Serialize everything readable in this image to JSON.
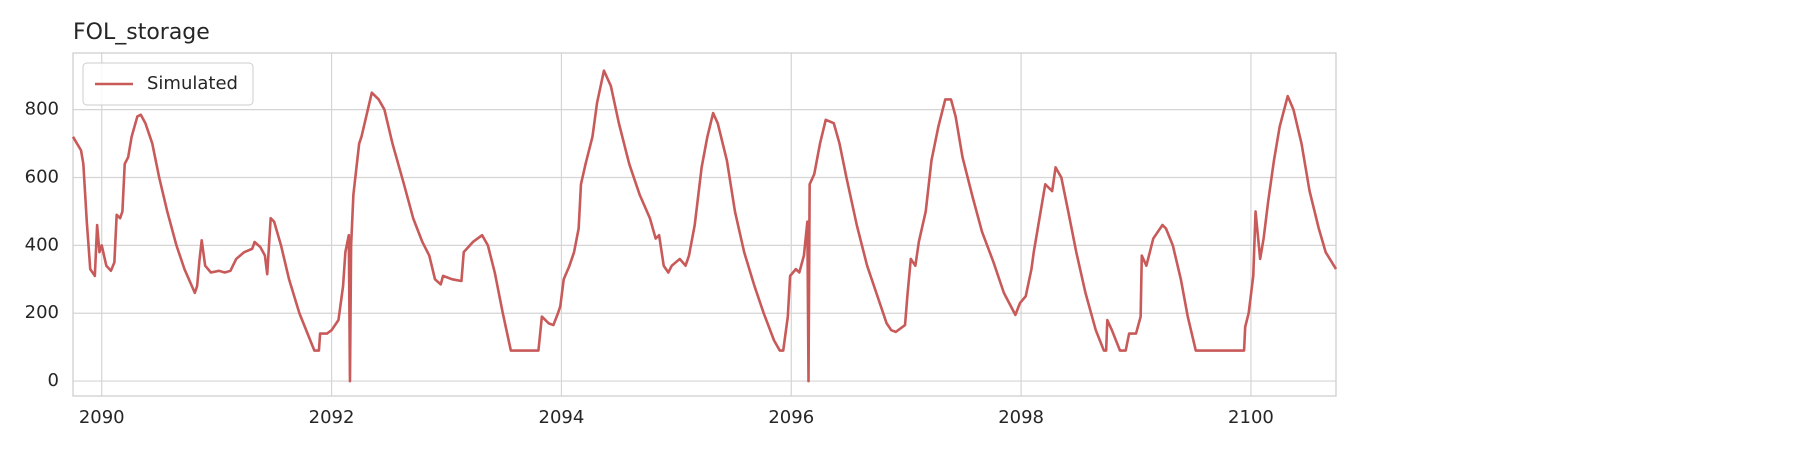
{
  "chart_data": {
    "type": "line",
    "title": "FOL_storage",
    "x": [
      2089.75,
      2089.82,
      2089.84,
      2089.87,
      2089.9,
      2089.94,
      2089.96,
      2089.98,
      2090.0,
      2090.04,
      2090.08,
      2090.11,
      2090.13,
      2090.16,
      2090.18,
      2090.2,
      2090.23,
      2090.26,
      2090.31,
      2090.34,
      2090.38,
      2090.44,
      2090.5,
      2090.57,
      2090.65,
      2090.72,
      2090.81,
      2090.83,
      2090.85,
      2090.87,
      2090.9,
      2090.95,
      2091.02,
      2091.07,
      2091.12,
      2091.17,
      2091.24,
      2091.31,
      2091.33,
      2091.38,
      2091.42,
      2091.44,
      2091.47,
      2091.5,
      2091.56,
      2091.63,
      2091.72,
      2091.85,
      2091.89,
      2091.9,
      2091.96,
      2092.0,
      2092.06,
      2092.1,
      2092.12,
      2092.15,
      2092.16,
      2092.17,
      2092.19,
      2092.24,
      2092.26,
      2092.35,
      2092.41,
      2092.46,
      2092.53,
      2092.63,
      2092.71,
      2092.79,
      2092.85,
      2092.9,
      2092.95,
      2092.97,
      2093.05,
      2093.13,
      2093.15,
      2093.23,
      2093.31,
      2093.36,
      2093.42,
      2093.49,
      2093.56,
      2093.8,
      2093.83,
      2093.89,
      2093.93,
      2093.97,
      2093.99,
      2094.02,
      2094.07,
      2094.11,
      2094.15,
      2094.17,
      2094.21,
      2094.27,
      2094.31,
      2094.37,
      2094.43,
      2094.5,
      2094.59,
      2094.68,
      2094.77,
      2094.82,
      2094.85,
      2094.89,
      2094.93,
      2094.96,
      2095.03,
      2095.08,
      2095.11,
      2095.16,
      2095.22,
      2095.27,
      2095.32,
      2095.36,
      2095.44,
      2095.51,
      2095.59,
      2095.68,
      2095.76,
      2095.85,
      2095.9,
      2095.93,
      2095.97,
      2095.99,
      2096.04,
      2096.07,
      2096.11,
      2096.14,
      2096.15,
      2096.16,
      2096.2,
      2096.25,
      2096.3,
      2096.37,
      2096.42,
      2096.48,
      2096.57,
      2096.66,
      2096.75,
      2096.83,
      2096.87,
      2096.91,
      2096.99,
      2097.01,
      2097.04,
      2097.08,
      2097.11,
      2097.17,
      2097.22,
      2097.28,
      2097.34,
      2097.39,
      2097.43,
      2097.49,
      2097.58,
      2097.66,
      2097.76,
      2097.85,
      2097.95,
      2097.99,
      2098.04,
      2098.09,
      2098.11,
      2098.16,
      2098.21,
      2098.27,
      2098.3,
      2098.35,
      2098.41,
      2098.48,
      2098.56,
      2098.65,
      2098.72,
      2098.74,
      2098.75,
      2098.79,
      2098.86,
      2098.91,
      2098.94,
      2099.0,
      2099.04,
      2099.05,
      2099.09,
      2099.15,
      2099.23,
      2099.26,
      2099.32,
      2099.39,
      2099.45,
      2099.52,
      2099.94,
      2099.95,
      2099.98,
      2100.02,
      2100.04,
      2100.08,
      2100.11,
      2100.15,
      2100.2,
      2100.25,
      2100.32,
      2100.37,
      2100.44,
      2100.51,
      2100.59,
      2100.65,
      2100.74
    ],
    "series": [
      {
        "name": "Simulated",
        "color": "#c85a5a",
        "values": [
          720,
          680,
          640,
          470,
          330,
          310,
          460,
          380,
          400,
          340,
          325,
          350,
          490,
          480,
          500,
          640,
          660,
          720,
          780,
          785,
          760,
          700,
          600,
          500,
          400,
          330,
          260,
          280,
          355,
          415,
          340,
          320,
          325,
          320,
          325,
          360,
          380,
          390,
          410,
          395,
          370,
          315,
          480,
          470,
          400,
          300,
          200,
          90,
          90,
          140,
          140,
          150,
          180,
          280,
          380,
          430,
          0,
          400,
          550,
          700,
          720,
          850,
          830,
          800,
          700,
          580,
          480,
          410,
          370,
          300,
          285,
          310,
          300,
          295,
          380,
          410,
          430,
          400,
          320,
          200,
          90,
          90,
          190,
          170,
          165,
          200,
          220,
          300,
          340,
          380,
          450,
          580,
          640,
          720,
          820,
          915,
          870,
          760,
          640,
          550,
          480,
          420,
          430,
          340,
          320,
          340,
          360,
          340,
          370,
          460,
          630,
          720,
          790,
          760,
          650,
          500,
          380,
          280,
          200,
          120,
          90,
          90,
          190,
          310,
          330,
          320,
          370,
          470,
          0,
          580,
          610,
          700,
          770,
          760,
          700,
          600,
          460,
          340,
          250,
          170,
          150,
          145,
          165,
          250,
          360,
          340,
          410,
          500,
          650,
          750,
          830,
          830,
          780,
          660,
          540,
          440,
          350,
          260,
          195,
          230,
          250,
          330,
          380,
          480,
          580,
          560,
          630,
          600,
          500,
          380,
          260,
          150,
          90,
          90,
          180,
          150,
          90,
          90,
          140,
          140,
          190,
          370,
          340,
          420,
          460,
          450,
          400,
          300,
          190,
          90,
          90,
          160,
          200,
          310,
          500,
          360,
          420,
          530,
          650,
          750,
          840,
          800,
          700,
          560,
          450,
          380,
          330
        ]
      }
    ],
    "xlim": [
      2089.75,
      2100.74
    ],
    "ylim": [
      -44,
      967
    ],
    "xticks": [
      2090,
      2092,
      2094,
      2096,
      2098,
      2100
    ],
    "yticks": [
      0,
      200,
      400,
      600,
      800
    ],
    "grid": true,
    "legend": "upper left"
  }
}
